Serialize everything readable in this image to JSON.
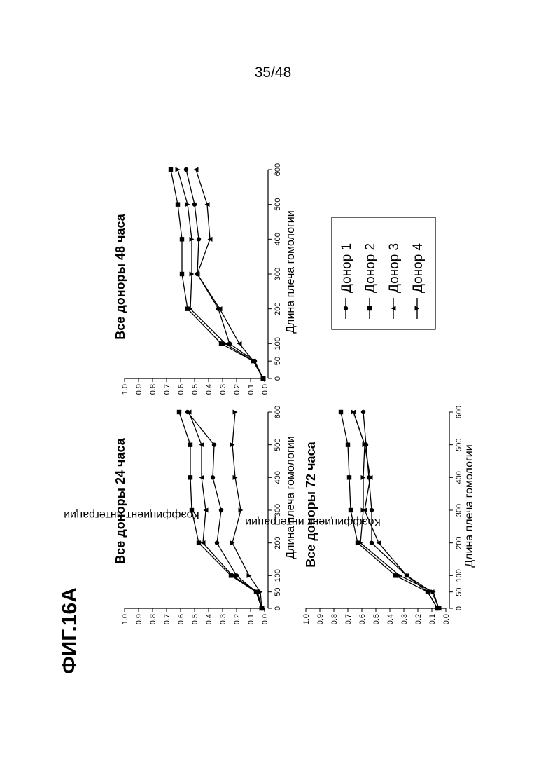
{
  "page": {
    "number": "35/48",
    "figure_label": "ФИГ.16А"
  },
  "legend": {
    "items": [
      {
        "label": "Донор 1",
        "marker": "circle"
      },
      {
        "label": "Донор 2",
        "marker": "square"
      },
      {
        "label": "Донор 3",
        "marker": "triangle-up"
      },
      {
        "label": "Донор 4",
        "marker": "triangle-down"
      }
    ]
  },
  "chart_data": [
    {
      "id": "24h",
      "type": "line",
      "title": "Все доноры 24 часа",
      "xlabel": "Длина плеча гомологии",
      "ylabel": "Коэффициент интеграции",
      "x": [
        0,
        50,
        100,
        200,
        300,
        400,
        500,
        600
      ],
      "xticks": [
        "0",
        "50",
        "100",
        "200",
        "300",
        "400",
        "500",
        "600"
      ],
      "ylim": [
        0,
        1.0
      ],
      "yticks": [
        "0.0",
        "0.1",
        "0.2",
        "0.3",
        "0.4",
        "0.5",
        "0.6",
        "0.7",
        "0.8",
        "0.9",
        "1.0"
      ],
      "series": [
        {
          "name": "Донор 1",
          "marker": "circle",
          "values": [
            0.02,
            0.06,
            0.2,
            0.34,
            0.31,
            0.37,
            0.36,
            0.55
          ]
        },
        {
          "name": "Донор 2",
          "marker": "square",
          "values": [
            0.02,
            0.06,
            0.24,
            0.47,
            0.52,
            0.53,
            0.53,
            0.61
          ]
        },
        {
          "name": "Донор 3",
          "marker": "triangle-up",
          "values": [
            0.02,
            0.05,
            0.23,
            0.44,
            0.42,
            0.45,
            0.45,
            0.54
          ]
        },
        {
          "name": "Донор 4",
          "marker": "triangle-down",
          "values": [
            0.02,
            0.03,
            0.11,
            0.23,
            0.17,
            0.21,
            0.23,
            0.21
          ]
        }
      ]
    },
    {
      "id": "48h",
      "type": "line",
      "title": "Все доноры 48 часа",
      "xlabel": "Длина плеча гомологии",
      "ylabel": "",
      "x": [
        0,
        50,
        100,
        200,
        300,
        400,
        500,
        600
      ],
      "xticks": [
        "0",
        "50",
        "100",
        "200",
        "300",
        "400",
        "500",
        "600"
      ],
      "ylim": [
        0,
        1.0
      ],
      "yticks": [
        "0.0",
        "0.1",
        "0.2",
        "0.3",
        "0.4",
        "0.5",
        "0.6",
        "0.7",
        "0.8",
        "0.9",
        "1.0"
      ],
      "series": [
        {
          "name": "Донор 1",
          "marker": "circle",
          "values": [
            0.01,
            0.07,
            0.25,
            0.33,
            0.48,
            0.47,
            0.5,
            0.56
          ]
        },
        {
          "name": "Донор 2",
          "marker": "square",
          "values": [
            0.01,
            0.08,
            0.31,
            0.55,
            0.59,
            0.59,
            0.62,
            0.67
          ]
        },
        {
          "name": "Донор 3",
          "marker": "triangle-up",
          "values": [
            0.01,
            0.08,
            0.18,
            0.32,
            0.48,
            0.39,
            0.41,
            0.49
          ]
        },
        {
          "name": "Донор 4",
          "marker": "triangle-down",
          "values": [
            0.01,
            0.08,
            0.28,
            0.53,
            0.52,
            0.52,
            0.55,
            0.62
          ]
        }
      ]
    },
    {
      "id": "72h",
      "type": "line",
      "title": "Все доноры 72 часа",
      "xlabel": "Длина плеча гомологии",
      "ylabel": "Коэффициент интеграции",
      "x": [
        0,
        50,
        100,
        200,
        300,
        400,
        500,
        600
      ],
      "xticks": [
        "0",
        "50",
        "100",
        "200",
        "300",
        "400",
        "500",
        "600"
      ],
      "ylim": [
        0,
        1.0
      ],
      "yticks": [
        "0.0",
        "0.1",
        "0.2",
        "0.3",
        "0.4",
        "0.5",
        "0.6",
        "0.7",
        "0.8",
        "0.9",
        "1.0"
      ],
      "series": [
        {
          "name": "Донор 1",
          "marker": "circle",
          "values": [
            0.06,
            0.13,
            0.28,
            0.53,
            0.53,
            0.55,
            0.57,
            0.59
          ]
        },
        {
          "name": "Донор 2",
          "marker": "square",
          "values": [
            0.06,
            0.13,
            0.36,
            0.63,
            0.68,
            0.69,
            0.7,
            0.75
          ]
        },
        {
          "name": "Донор 3",
          "marker": "triangle-up",
          "values": [
            0.05,
            0.1,
            0.28,
            0.48,
            0.58,
            0.54,
            0.58,
            0.66
          ]
        },
        {
          "name": "Донор 4",
          "marker": "triangle-down",
          "values": [
            0.05,
            0.09,
            0.33,
            0.61,
            0.59,
            0.59,
            0.58,
            0.66
          ]
        }
      ]
    }
  ]
}
